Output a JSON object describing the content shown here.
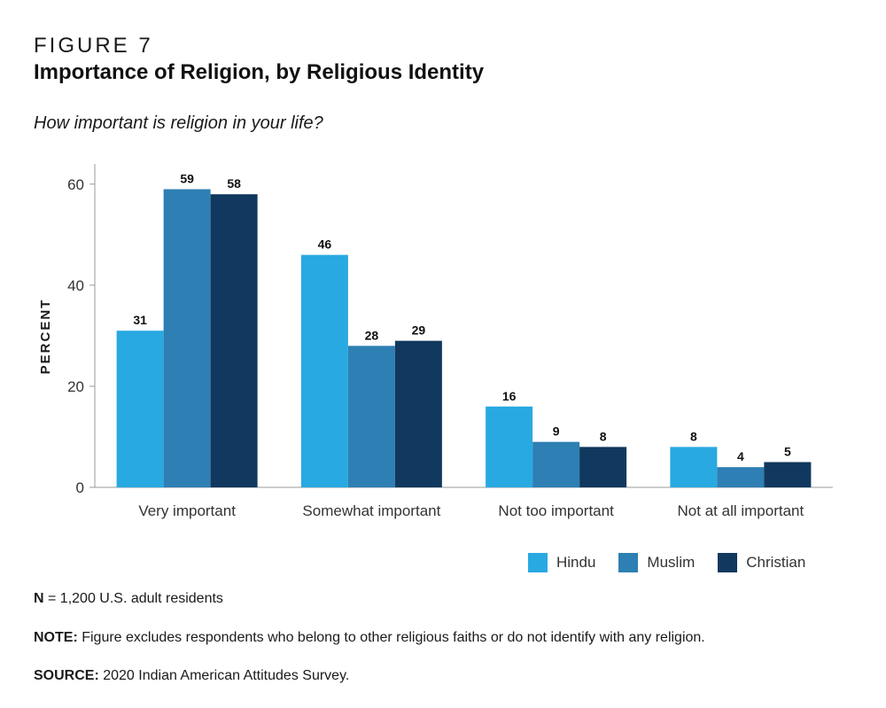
{
  "figure_label": "FIGURE 7",
  "title": "Importance of Religion, by Religious Identity",
  "subtitle": "How important is religion in your life?",
  "chart_data": {
    "type": "bar",
    "categories": [
      "Very important",
      "Somewhat important",
      "Not too important",
      "Not at all important"
    ],
    "series": [
      {
        "name": "Hindu",
        "color": "#29a9e1",
        "values": [
          31,
          46,
          16,
          8
        ]
      },
      {
        "name": "Muslim",
        "color": "#2e7fb3",
        "values": [
          59,
          28,
          9,
          4
        ]
      },
      {
        "name": "Christian",
        "color": "#11385e",
        "values": [
          58,
          29,
          8,
          5
        ]
      }
    ],
    "ylabel": "PERCENT",
    "xlabel": "",
    "ylim": [
      0,
      64
    ],
    "yticks": [
      0,
      20,
      40,
      60
    ],
    "grid": false,
    "legend_position": "bottom-right",
    "data_labels": true
  },
  "notes": {
    "n_label": "N",
    "n_text": " = 1,200 U.S. adult residents",
    "note_label": "NOTE:",
    "note_text": " Figure excludes respondents who belong to other religious faiths or do not identify with any religion.",
    "source_label": "SOURCE:",
    "source_text": " 2020 Indian American Attitudes Survey."
  }
}
